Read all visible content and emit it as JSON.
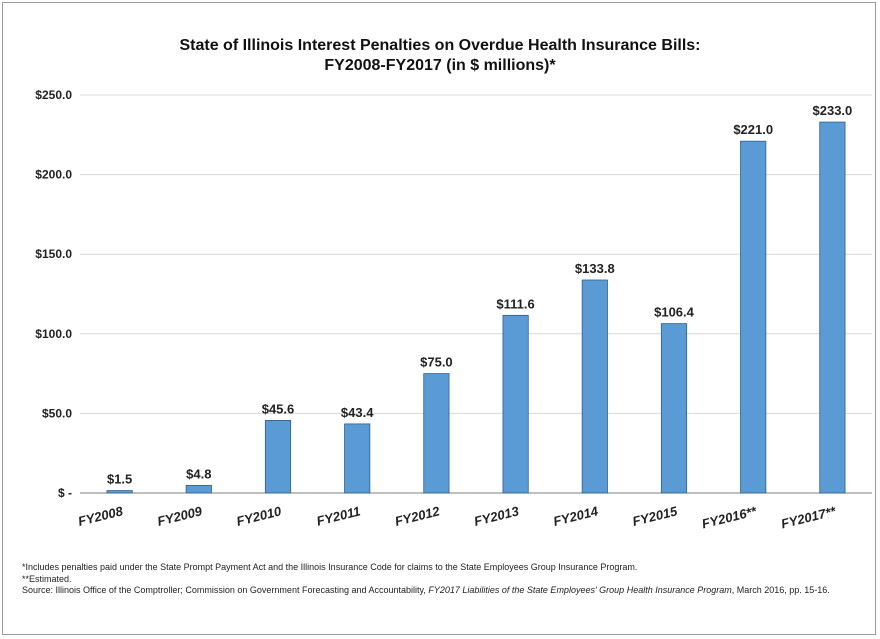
{
  "chart_data": {
    "type": "bar",
    "title": "State of Illinois Interest Penalties on Overdue Health Insurance Bills:",
    "subtitle": "FY2008-FY2017 (in $ millions)*",
    "categories": [
      "FY2008",
      "FY2009",
      "FY2010",
      "FY2011",
      "FY2012",
      "FY2013",
      "FY2014",
      "FY2015",
      "FY2016**",
      "FY2017**"
    ],
    "values": [
      1.5,
      4.8,
      45.6,
      43.4,
      75.0,
      111.6,
      133.8,
      106.4,
      221.0,
      233.0
    ],
    "value_labels": [
      "$1.5",
      "$4.8",
      "$45.6",
      "$43.4",
      "$75.0",
      "$111.6",
      "$133.8",
      "$106.4",
      "$221.0",
      "$233.0"
    ],
    "y_ticks": [
      0,
      50,
      100,
      150,
      200,
      250
    ],
    "y_tick_labels": [
      "$ -",
      "$50.0",
      "$100.0",
      "$150.0",
      "$200.0",
      "$250.0"
    ],
    "ylim": [
      0,
      250
    ],
    "grid": true,
    "legend": "none",
    "bar_color": "#5b9bd5"
  },
  "footnotes": {
    "line1": "*Includes penalties paid under the State Prompt Payment Act and the Illinois Insurance Code for claims to the State Employees Group Insurance Program.",
    "line2": "**Estimated.",
    "source_prefix": "Source: Illinois Office of the Comptroller; Commission on Government Forecasting and Accountability, ",
    "source_title": "FY2017 Liabilities of the State Employees' Group Health Insurance Program",
    "source_suffix": ", March 2016, pp. 15-16."
  }
}
